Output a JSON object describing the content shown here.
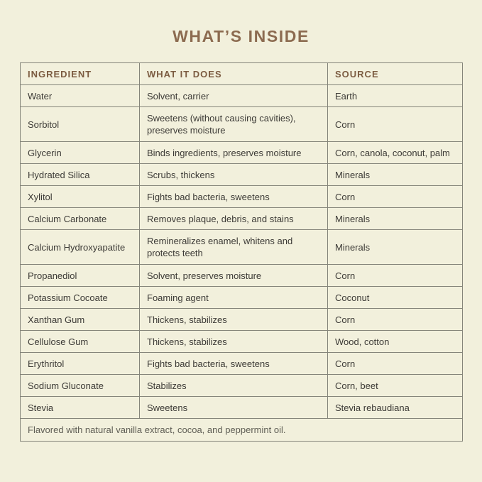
{
  "page": {
    "title": "WHAT’S INSIDE",
    "background_color": "#f2f0dc",
    "accent_color": "#8c6b50",
    "header_text_color": "#7c5c41",
    "body_text_color": "#3c3a36",
    "footnote_text_color": "#5f5e55",
    "border_color": "#85857a"
  },
  "table": {
    "headers": [
      "INGREDIENT",
      "WHAT IT DOES",
      "SOURCE"
    ],
    "rows": [
      {
        "ingredient": "Water",
        "what_it_does": "Solvent, carrier",
        "source": "Earth",
        "tall": false
      },
      {
        "ingredient": "Sorbitol",
        "what_it_does": "Sweetens (without causing cavities), preserves moisture",
        "source": "Corn",
        "tall": true
      },
      {
        "ingredient": "Glycerin",
        "what_it_does": "Binds ingredients, preserves moisture",
        "source": "Corn, canola, coconut, palm",
        "tall": false
      },
      {
        "ingredient": "Hydrated Silica",
        "what_it_does": "Scrubs, thickens",
        "source": "Minerals",
        "tall": false
      },
      {
        "ingredient": "Xylitol",
        "what_it_does": "Fights bad bacteria, sweetens",
        "source": "Corn",
        "tall": false
      },
      {
        "ingredient": "Calcium Carbonate",
        "what_it_does": "Removes plaque, debris, and stains",
        "source": "Minerals",
        "tall": false
      },
      {
        "ingredient": "Calcium Hydroxyapatite",
        "what_it_does": "Remineralizes enamel, whitens and protects teeth",
        "source": "Minerals",
        "tall": true
      },
      {
        "ingredient": "Propanediol",
        "what_it_does": "Solvent, preserves moisture",
        "source": "Corn",
        "tall": false
      },
      {
        "ingredient": "Potassium Cocoate",
        "what_it_does": "Foaming agent",
        "source": "Coconut",
        "tall": false
      },
      {
        "ingredient": "Xanthan Gum",
        "what_it_does": "Thickens, stabilizes",
        "source": "Corn",
        "tall": false
      },
      {
        "ingredient": "Cellulose Gum",
        "what_it_does": "Thickens, stabilizes",
        "source": "Wood, cotton",
        "tall": false
      },
      {
        "ingredient": "Erythritol",
        "what_it_does": "Fights bad bacteria, sweetens",
        "source": "Corn",
        "tall": false
      },
      {
        "ingredient": "Sodium Gluconate",
        "what_it_does": "Stabilizes",
        "source": "Corn, beet",
        "tall": false
      },
      {
        "ingredient": "Stevia",
        "what_it_does": "Sweetens",
        "source": "Stevia rebaudiana",
        "tall": false
      }
    ],
    "footnote": "Flavored with natural vanilla extract, cocoa, and peppermint oil."
  }
}
